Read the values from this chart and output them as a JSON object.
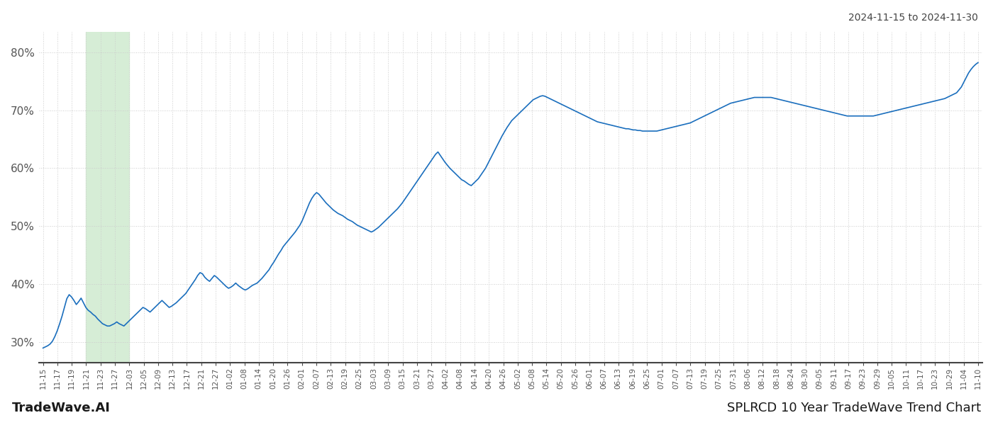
{
  "title_top_right": "2024-11-15 to 2024-11-30",
  "bottom_left_text": "TradeWave.AI",
  "bottom_right_text": "SPLRCD 10 Year TradeWave Trend Chart",
  "line_color": "#1a6ebd",
  "line_width": 1.2,
  "background_color": "#ffffff",
  "grid_color": "#cccccc",
  "grid_style": ":",
  "shade_color": "#d6edd6",
  "ylim": [
    0.265,
    0.835
  ],
  "yticks": [
    0.3,
    0.4,
    0.5,
    0.6,
    0.7,
    0.8
  ],
  "ytick_labels": [
    "30%",
    "40%",
    "50%",
    "60%",
    "70%",
    "80%"
  ],
  "x_tick_labels": [
    "11-15",
    "11-17",
    "11-19",
    "11-21",
    "11-23",
    "11-27",
    "12-03",
    "12-05",
    "12-09",
    "12-13",
    "12-17",
    "12-21",
    "12-27",
    "01-02",
    "01-08",
    "01-14",
    "01-20",
    "01-26",
    "02-01",
    "02-07",
    "02-13",
    "02-19",
    "02-25",
    "03-03",
    "03-09",
    "03-15",
    "03-21",
    "03-27",
    "04-02",
    "04-08",
    "04-14",
    "04-20",
    "04-26",
    "05-02",
    "05-08",
    "05-14",
    "05-20",
    "05-26",
    "06-01",
    "06-07",
    "06-13",
    "06-19",
    "06-25",
    "07-01",
    "07-07",
    "07-13",
    "07-19",
    "07-25",
    "07-31",
    "08-06",
    "08-12",
    "08-18",
    "08-24",
    "08-30",
    "09-05",
    "09-11",
    "09-17",
    "09-23",
    "09-29",
    "10-05",
    "10-11",
    "10-17",
    "10-23",
    "10-29",
    "11-04",
    "11-10"
  ],
  "shade_start_label": "11-21",
  "shade_end_label": "12-03",
  "values": [
    0.29,
    0.292,
    0.294,
    0.297,
    0.302,
    0.31,
    0.32,
    0.332,
    0.345,
    0.36,
    0.375,
    0.382,
    0.378,
    0.372,
    0.365,
    0.37,
    0.376,
    0.368,
    0.36,
    0.355,
    0.352,
    0.348,
    0.345,
    0.34,
    0.336,
    0.332,
    0.33,
    0.328,
    0.328,
    0.33,
    0.332,
    0.335,
    0.332,
    0.33,
    0.328,
    0.332,
    0.336,
    0.34,
    0.344,
    0.348,
    0.352,
    0.356,
    0.36,
    0.358,
    0.355,
    0.352,
    0.356,
    0.36,
    0.364,
    0.368,
    0.372,
    0.368,
    0.364,
    0.36,
    0.362,
    0.365,
    0.368,
    0.372,
    0.376,
    0.38,
    0.384,
    0.39,
    0.396,
    0.402,
    0.408,
    0.415,
    0.42,
    0.418,
    0.412,
    0.408,
    0.405,
    0.41,
    0.415,
    0.412,
    0.408,
    0.404,
    0.4,
    0.396,
    0.393,
    0.395,
    0.398,
    0.402,
    0.398,
    0.395,
    0.392,
    0.39,
    0.392,
    0.395,
    0.398,
    0.4,
    0.402,
    0.406,
    0.41,
    0.415,
    0.42,
    0.425,
    0.432,
    0.438,
    0.445,
    0.452,
    0.458,
    0.465,
    0.47,
    0.475,
    0.48,
    0.485,
    0.49,
    0.496,
    0.502,
    0.51,
    0.52,
    0.53,
    0.54,
    0.548,
    0.554,
    0.558,
    0.555,
    0.55,
    0.545,
    0.54,
    0.536,
    0.532,
    0.528,
    0.525,
    0.522,
    0.52,
    0.518,
    0.515,
    0.512,
    0.51,
    0.508,
    0.505,
    0.502,
    0.5,
    0.498,
    0.496,
    0.494,
    0.492,
    0.49,
    0.492,
    0.495,
    0.498,
    0.502,
    0.506,
    0.51,
    0.514,
    0.518,
    0.522,
    0.526,
    0.53,
    0.535,
    0.54,
    0.546,
    0.552,
    0.558,
    0.564,
    0.57,
    0.576,
    0.582,
    0.588,
    0.594,
    0.6,
    0.606,
    0.612,
    0.618,
    0.624,
    0.628,
    0.622,
    0.616,
    0.61,
    0.605,
    0.6,
    0.596,
    0.592,
    0.588,
    0.584,
    0.58,
    0.578,
    0.575,
    0.572,
    0.57,
    0.574,
    0.578,
    0.582,
    0.588,
    0.594,
    0.6,
    0.608,
    0.616,
    0.624,
    0.632,
    0.64,
    0.648,
    0.656,
    0.663,
    0.67,
    0.676,
    0.682,
    0.686,
    0.69,
    0.694,
    0.698,
    0.702,
    0.706,
    0.71,
    0.714,
    0.718,
    0.72,
    0.722,
    0.724,
    0.725,
    0.724,
    0.722,
    0.72,
    0.718,
    0.716,
    0.714,
    0.712,
    0.71,
    0.708,
    0.706,
    0.704,
    0.702,
    0.7,
    0.698,
    0.696,
    0.694,
    0.692,
    0.69,
    0.688,
    0.686,
    0.684,
    0.682,
    0.68,
    0.679,
    0.678,
    0.677,
    0.676,
    0.675,
    0.674,
    0.673,
    0.672,
    0.671,
    0.67,
    0.669,
    0.668,
    0.668,
    0.667,
    0.666,
    0.666,
    0.665,
    0.665,
    0.664,
    0.664,
    0.664,
    0.664,
    0.664,
    0.664,
    0.664,
    0.665,
    0.666,
    0.667,
    0.668,
    0.669,
    0.67,
    0.671,
    0.672,
    0.673,
    0.674,
    0.675,
    0.676,
    0.677,
    0.678,
    0.68,
    0.682,
    0.684,
    0.686,
    0.688,
    0.69,
    0.692,
    0.694,
    0.696,
    0.698,
    0.7,
    0.702,
    0.704,
    0.706,
    0.708,
    0.71,
    0.712,
    0.713,
    0.714,
    0.715,
    0.716,
    0.717,
    0.718,
    0.719,
    0.72,
    0.721,
    0.722,
    0.722,
    0.722,
    0.722,
    0.722,
    0.722,
    0.722,
    0.722,
    0.721,
    0.72,
    0.719,
    0.718,
    0.717,
    0.716,
    0.715,
    0.714,
    0.713,
    0.712,
    0.711,
    0.71,
    0.709,
    0.708,
    0.707,
    0.706,
    0.705,
    0.704,
    0.703,
    0.702,
    0.701,
    0.7,
    0.699,
    0.698,
    0.697,
    0.696,
    0.695,
    0.694,
    0.693,
    0.692,
    0.691,
    0.69,
    0.69,
    0.69,
    0.69,
    0.69,
    0.69,
    0.69,
    0.69,
    0.69,
    0.69,
    0.69,
    0.69,
    0.691,
    0.692,
    0.693,
    0.694,
    0.695,
    0.696,
    0.697,
    0.698,
    0.699,
    0.7,
    0.701,
    0.702,
    0.703,
    0.704,
    0.705,
    0.706,
    0.707,
    0.708,
    0.709,
    0.71,
    0.711,
    0.712,
    0.713,
    0.714,
    0.715,
    0.716,
    0.717,
    0.718,
    0.719,
    0.72,
    0.722,
    0.724,
    0.726,
    0.728,
    0.73,
    0.735,
    0.74,
    0.748,
    0.756,
    0.764,
    0.77,
    0.775,
    0.779,
    0.782
  ]
}
